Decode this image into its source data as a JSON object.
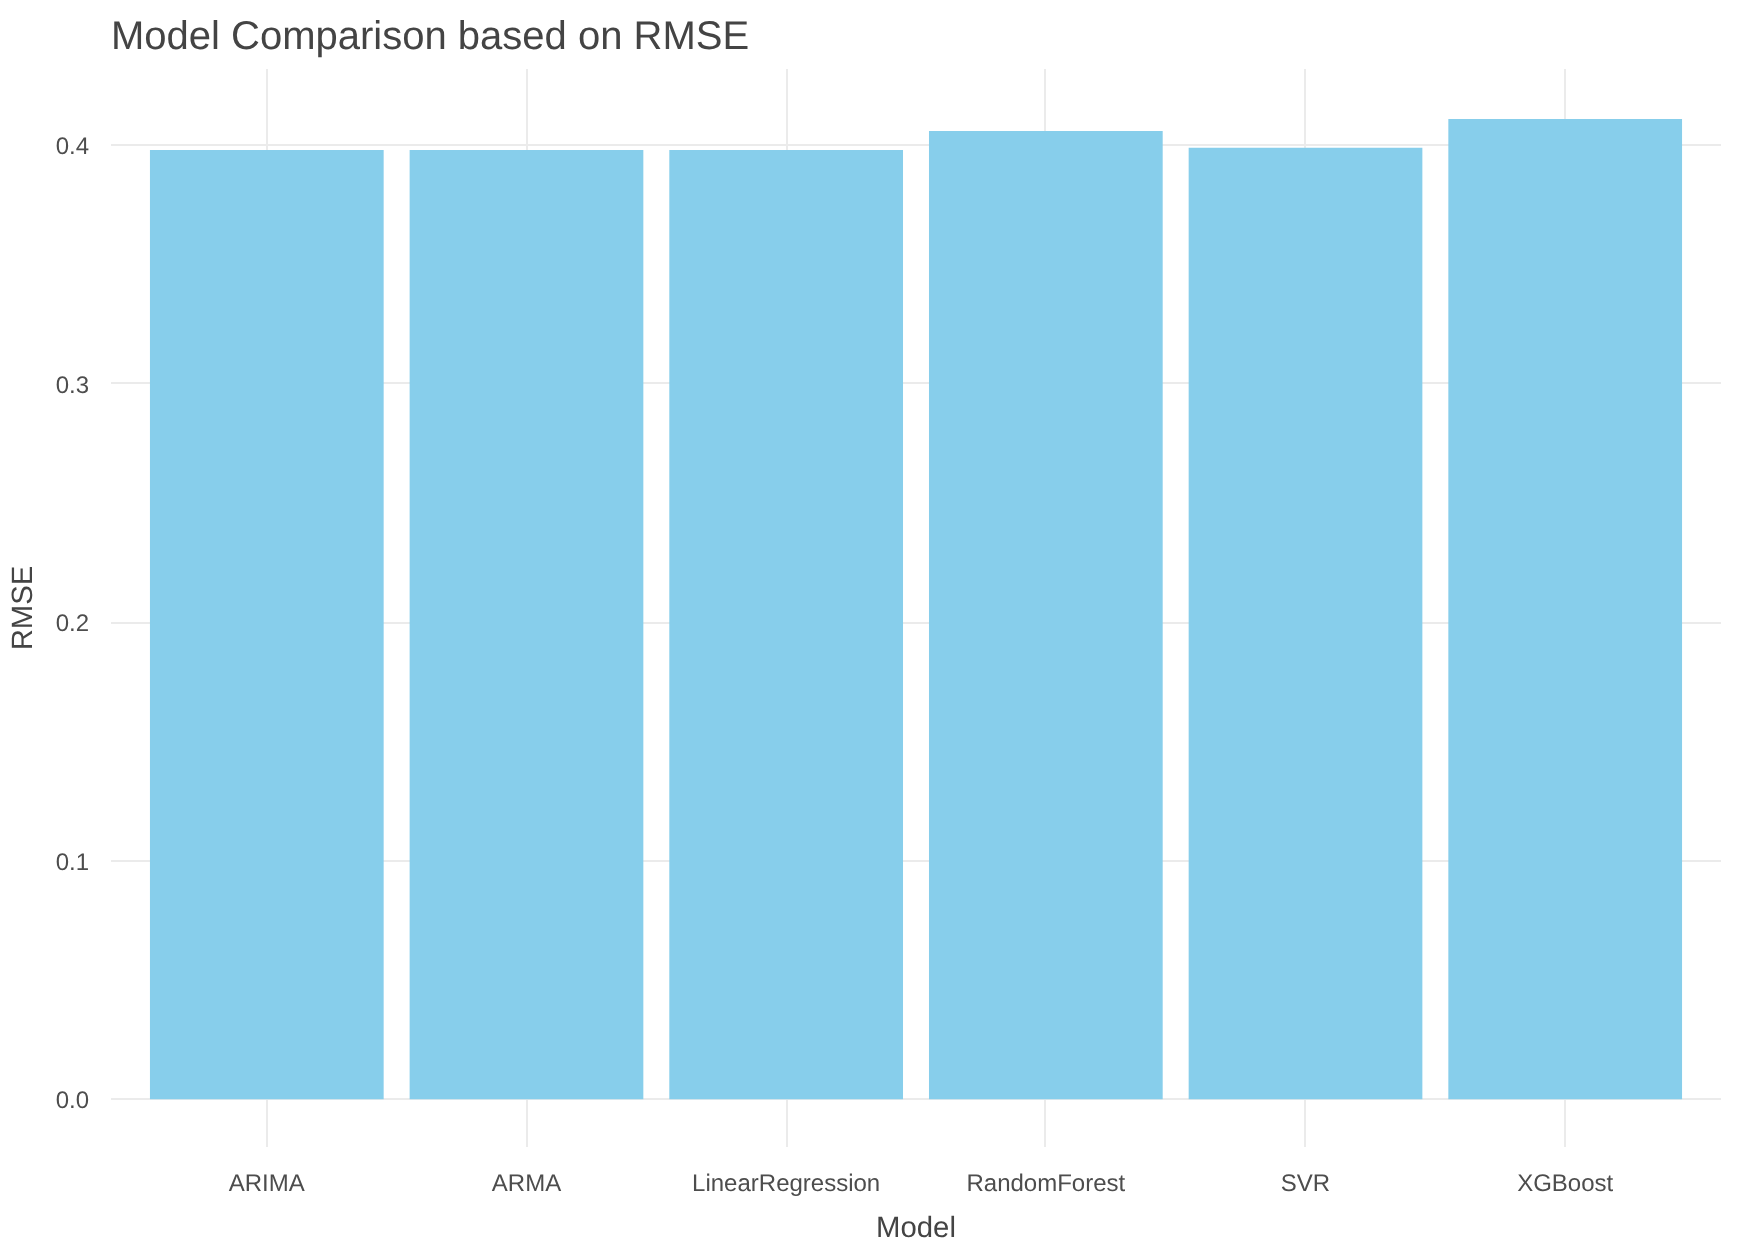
{
  "chart_data": {
    "type": "bar",
    "title": "Model Comparison based on RMSE",
    "xlabel": "Model",
    "ylabel": "RMSE",
    "categories": [
      "ARIMA",
      "ARMA",
      "LinearRegression",
      "RandomForest",
      "SVR",
      "XGBoost"
    ],
    "values": [
      0.398,
      0.398,
      0.398,
      0.406,
      0.399,
      0.411
    ],
    "color": "#87ceeb",
    "ylim": [
      -0.02,
      0.432
    ],
    "yticks": [
      {
        "value": 0,
        "label": "0.0"
      },
      0.1,
      0.2,
      0.3,
      0.4
    ],
    "grid": true
  }
}
